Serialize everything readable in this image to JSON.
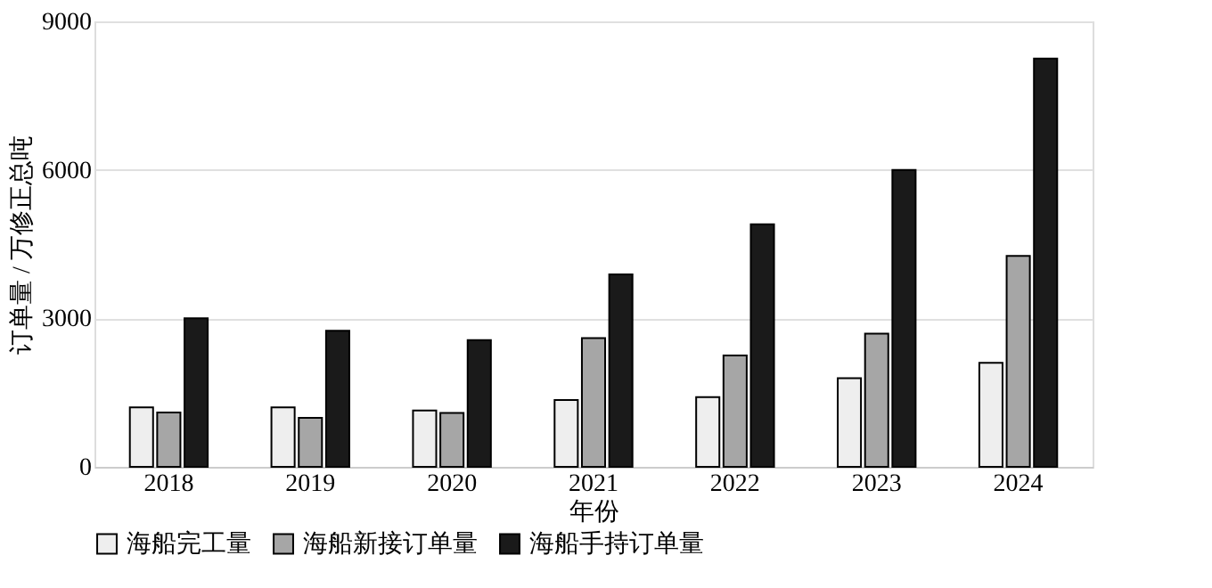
{
  "chart_data": {
    "type": "bar",
    "xlabel": "年份",
    "ylabel": "订单量 / 万修正总吨",
    "categories": [
      "2018",
      "2019",
      "2020",
      "2021",
      "2022",
      "2023",
      "2024"
    ],
    "series": [
      {
        "name": "海船完工量",
        "color": "#eeeeee",
        "values": [
          1200,
          1200,
          1140,
          1350,
          1410,
          1790,
          2100
        ]
      },
      {
        "name": "海船新接订单量",
        "color": "#a6a6a6",
        "values": [
          1100,
          990,
          1090,
          2600,
          2250,
          2690,
          4260
        ]
      },
      {
        "name": "海船手持订单量",
        "color": "#1a1a1a",
        "values": [
          3000,
          2750,
          2560,
          3890,
          4900,
          6000,
          8250
        ]
      }
    ],
    "ylim": [
      0,
      9000
    ],
    "yticks": [
      0,
      3000,
      6000,
      9000
    ],
    "grid": "y",
    "legend": "bottom"
  }
}
